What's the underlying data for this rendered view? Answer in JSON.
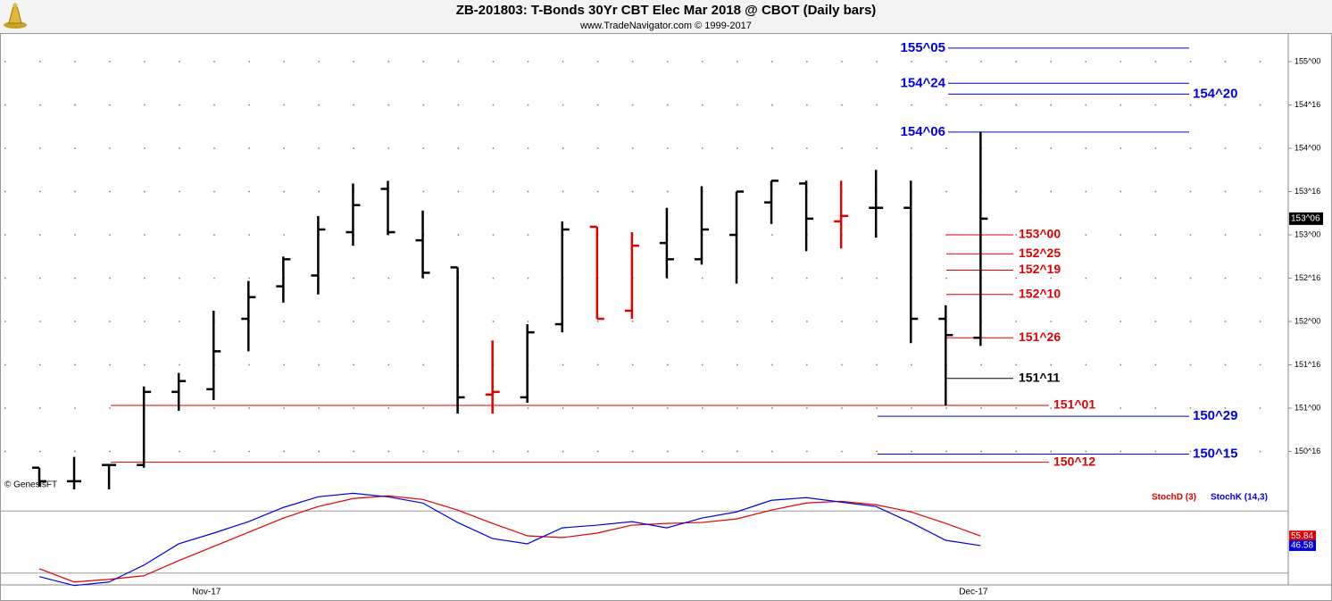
{
  "chart_data": [
    {
      "type": "ohlc",
      "title": "ZB-201803:  T-Bonds 30Yr CBT Elec Mar 2018 @ CBOT  (Daily bars)",
      "subtitle": "www.TradeNavigator.com © 1999-2017",
      "watermark": "© GenesisFT",
      "categories": [
        null,
        null,
        null,
        null,
        null,
        "Nov-17",
        null,
        null,
        null,
        null,
        null,
        null,
        null,
        null,
        null,
        null,
        null,
        null,
        null,
        null,
        null,
        null,
        null,
        null,
        null,
        null,
        null,
        "Dec-17"
      ],
      "open": [
        150.3125,
        150.15625,
        150.34375,
        150.34375,
        151.1875,
        151.21875,
        152.03125,
        152.40625,
        152.53125,
        153.03125,
        153.53125,
        152.9375,
        152.625,
        151.15625,
        151.125,
        151.96875,
        153.09375,
        152.125,
        152.90625,
        152.71875,
        153.0,
        153.375,
        153.59375,
        153.15625,
        153.3125,
        153.3125,
        152.03125,
        151.8125
      ],
      "high": [
        150.3125,
        150.4375,
        150.34375,
        151.25,
        151.40625,
        152.125,
        152.46875,
        152.75,
        153.21875,
        153.59375,
        153.625,
        153.28125,
        152.625,
        151.78125,
        151.96875,
        153.15625,
        153.09375,
        153.03125,
        153.3125,
        153.5625,
        153.5,
        153.625,
        153.625,
        153.625,
        153.75,
        153.625,
        152.1875,
        154.1875
      ],
      "low": [
        150.09375,
        150.0625,
        150.0625,
        150.3125,
        150.96875,
        151.09375,
        151.65625,
        152.21875,
        152.3125,
        152.875,
        153.0,
        152.5,
        150.9375,
        150.9375,
        151.0625,
        151.875,
        152.03125,
        152.03125,
        152.5,
        152.65625,
        152.4375,
        153.125,
        152.8125,
        152.84375,
        152.96875,
        151.75,
        151.03125,
        151.71875
      ],
      "close": [
        150.15625,
        150.15625,
        150.34375,
        151.1875,
        151.3125,
        151.65625,
        152.28125,
        152.71875,
        153.0625,
        153.34375,
        153.03125,
        152.5625,
        151.125,
        151.1875,
        151.875,
        153.0625,
        152.03125,
        152.875,
        152.71875,
        153.0625,
        153.5,
        153.625,
        153.1875,
        153.21875,
        153.3125,
        152.03125,
        151.84375,
        153.1875
      ],
      "bar_colors": [
        "#000000",
        "#000000",
        "#000000",
        "#000000",
        "#000000",
        "#000000",
        "#000000",
        "#000000",
        "#000000",
        "#000000",
        "#000000",
        "#000000",
        "#000000",
        "#e00000",
        "#000000",
        "#000000",
        "#e00000",
        "#e00000",
        "#000000",
        "#000000",
        "#000000",
        "#000000",
        "#000000",
        "#e00000",
        "#000000",
        "#000000",
        "#000000",
        "#000000"
      ],
      "last_close_label": "153^06",
      "ylim": [
        149.99,
        155.32
      ],
      "yticks": [
        {
          "value": 150.5,
          "label": "150^16"
        },
        {
          "value": 151.0,
          "label": "151^00"
        },
        {
          "value": 151.5,
          "label": "151^16"
        },
        {
          "value": 152.0,
          "label": "152^00"
        },
        {
          "value": 152.5,
          "label": "152^16"
        },
        {
          "value": 153.0,
          "label": "153^00"
        },
        {
          "value": 153.5,
          "label": "153^16"
        },
        {
          "value": 154.0,
          "label": "154^00"
        },
        {
          "value": 154.5,
          "label": "154^16"
        },
        {
          "value": 155.0,
          "label": "155^00"
        }
      ],
      "grid": true,
      "levels": [
        {
          "value": 155.15625,
          "label": "155^05",
          "color": "#0000e0"
        },
        {
          "value": 154.75,
          "label": "154^24",
          "color": "#0000e0"
        },
        {
          "value": 154.625,
          "label": "154^20",
          "color": "#0000e0"
        },
        {
          "value": 154.1875,
          "label": "154^06",
          "color": "#0000e0"
        },
        {
          "value": 153.0,
          "label": "153^00",
          "color": "#e00000"
        },
        {
          "value": 152.78125,
          "label": "152^25",
          "color": "#e00000"
        },
        {
          "value": 152.59375,
          "label": "152^19",
          "color": "#e00000"
        },
        {
          "value": 152.3125,
          "label": "152^10",
          "color": "#e00000"
        },
        {
          "value": 151.8125,
          "label": "151^26",
          "color": "#e00000"
        },
        {
          "value": 151.34375,
          "label": "151^11",
          "color": "#000000"
        },
        {
          "value": 151.03125,
          "label": "151^01",
          "color": "#e00000"
        },
        {
          "value": 150.90625,
          "label": "150^29",
          "color": "#0000e0"
        },
        {
          "value": 150.46875,
          "label": "150^15",
          "color": "#0000e0"
        },
        {
          "value": 150.375,
          "label": "150^12",
          "color": "#e00000"
        }
      ]
    },
    {
      "type": "line",
      "series": [
        {
          "name": "StochD (3)",
          "color": "#e00000",
          "values": [
            24.3,
            11.4,
            14.0,
            17.4,
            32.0,
            45.7,
            59.4,
            73.1,
            84.3,
            92.0,
            94.6,
            91.1,
            80.9,
            68.0,
            56.0,
            54.3,
            58.6,
            66.3,
            68.0,
            68.9,
            72.3,
            80.9,
            87.7,
            89.4,
            86.0,
            79.1,
            68.0,
            55.84
          ]
        },
        {
          "name": "StochK (14,3)",
          "color": "#0000e0",
          "values": [
            16.6,
            8.0,
            11.4,
            27.7,
            48.3,
            58.6,
            69.7,
            83.4,
            93.7,
            97.1,
            93.7,
            87.7,
            68.9,
            53.4,
            48.3,
            63.7,
            66.3,
            69.7,
            63.7,
            73.1,
            79.1,
            90.3,
            92.9,
            88.6,
            84.3,
            68.9,
            51.7,
            46.58
          ]
        }
      ],
      "ylim": [
        6,
        100
      ],
      "hlines": [
        20,
        80
      ]
    }
  ]
}
